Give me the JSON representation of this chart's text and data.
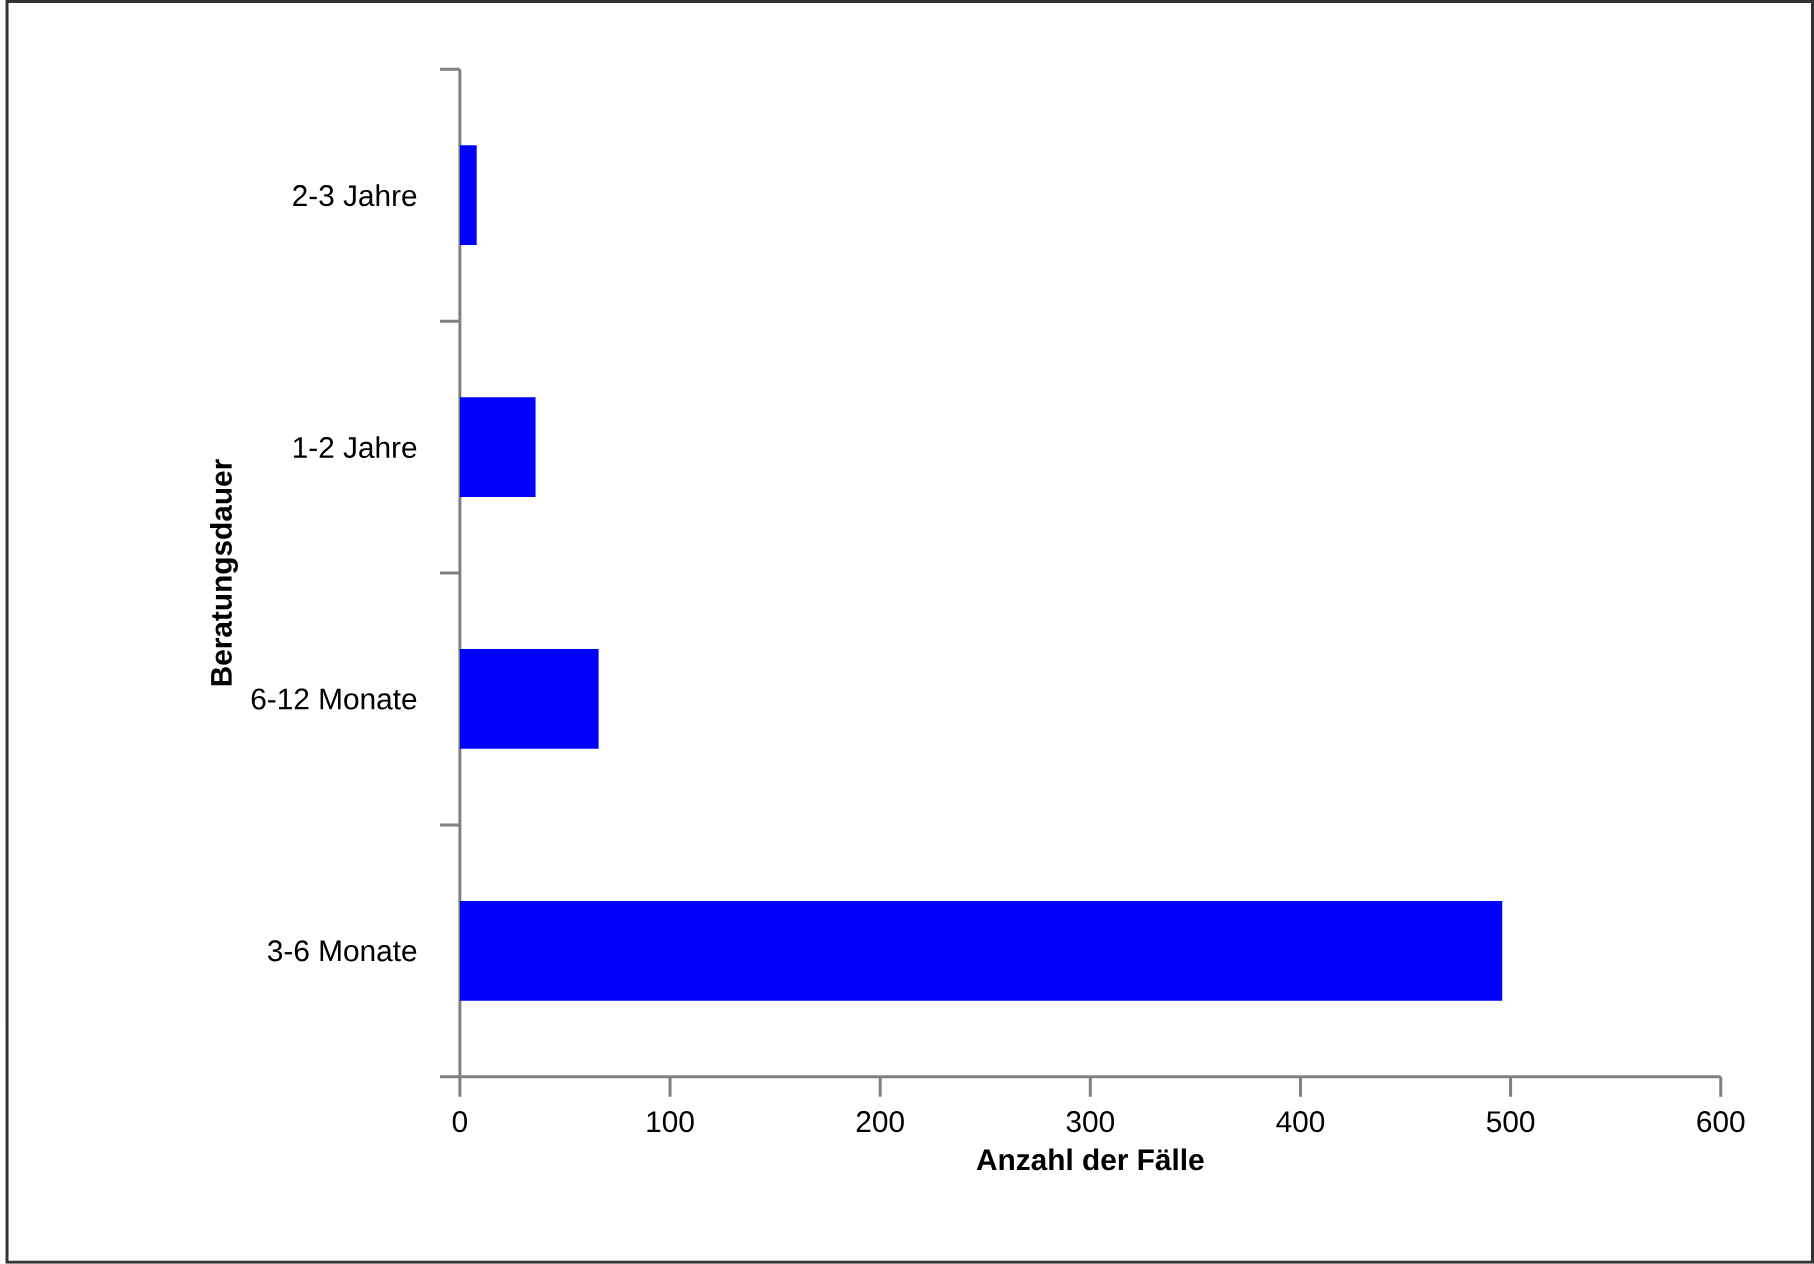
{
  "chart_data": {
    "type": "bar",
    "orientation": "horizontal",
    "xlabel": "Anzahl der Fälle",
    "ylabel": "Beratungsdauer",
    "categories": [
      "2-3 Jahre",
      "1-2 Jahre",
      "6-12 Monate",
      "3-6 Monate"
    ],
    "values": [
      8,
      36,
      66,
      496
    ],
    "color": "#0000ff",
    "xlim": [
      0,
      600
    ],
    "xticks": [
      0,
      100,
      200,
      300,
      400,
      500,
      600
    ],
    "grid": false
  }
}
